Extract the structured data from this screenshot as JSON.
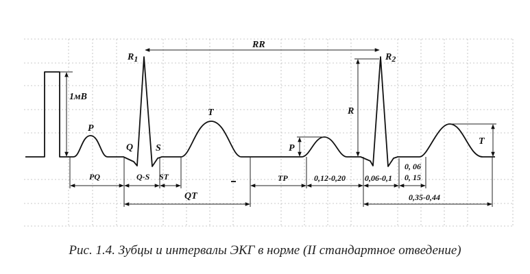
{
  "labels": {
    "r1": "R",
    "r1_sub": "1",
    "r2": "R",
    "r2_sub": "2",
    "rr": "RR",
    "mv": "1мВ",
    "p1": "P",
    "q": "Q",
    "s": "S",
    "t1": "T",
    "r_amp": "R",
    "p2": "P",
    "t2": "T",
    "pq": "PQ",
    "qs": "Q-S",
    "st": "ST",
    "qt": "QT",
    "tp": "TP",
    "p_dur": "0,12-0,20",
    "qrs_dur": "0,06-0,1",
    "st_dur1": "0, 06",
    "st_dur2": "0, 15",
    "qt_dur": "0,35-0,44"
  },
  "caption": "Рис. 1.4. Зубцы и интервалы ЭКГ в норме (II стандартное отведение)"
}
